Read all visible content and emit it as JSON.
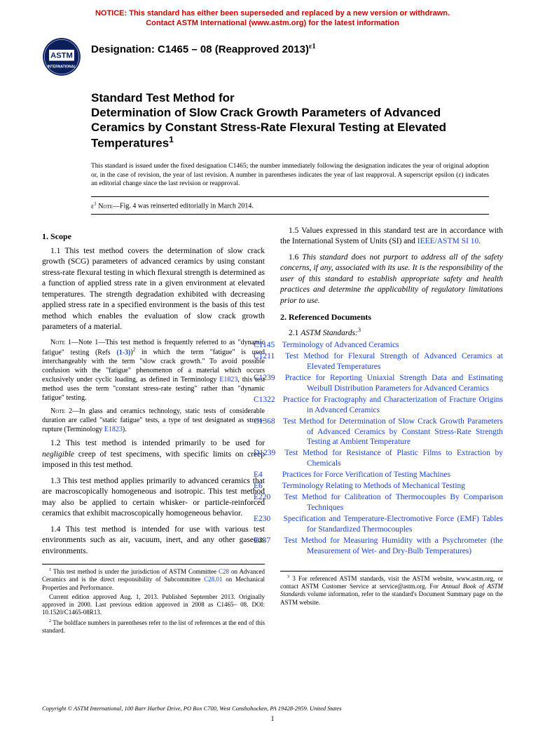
{
  "notice": {
    "line1": "NOTICE: This standard has either been superseded and replaced by a new version or withdrawn.",
    "line2": "Contact ASTM International (www.astm.org) for the latest information"
  },
  "designation": {
    "label": "Designation: C1465 – 08 (Reapproved 2013)",
    "eps": "ε1"
  },
  "title": {
    "line1": "Standard Test Method for",
    "line2": "Determination of Slow Crack Growth Parameters of Advanced Ceramics by Constant Stress-Rate Flexural Testing at Elevated Temperatures",
    "sup": "1"
  },
  "issuance": "This standard is issued under the fixed designation C1465; the number immediately following the designation indicates the year of original adoption or, in the case of revision, the year of last revision. A number in parentheses indicates the year of last reapproval. A superscript epsilon (ε) indicates an editorial change since the last revision or reapproval.",
  "eps_note": {
    "prefix": "ε1 NOTE—",
    "text": "Fig. 4 was reinserted editorially in March 2014."
  },
  "scope": {
    "head": "1. Scope",
    "p11": "1.1 This test method covers the determination of slow crack growth (SCG) parameters of advanced ceramics by using constant stress-rate flexural testing in which flexural strength is determined as a function of applied stress rate in a given environment at elevated temperatures. The strength degradation exhibited with decreasing applied stress rate in a specified environment is the basis of this test method which enables the evaluation of slow crack growth parameters of a material.",
    "note1_a": "Note 1—This test method is frequently referred to as \"dynamic fatigue\" testing (Refs ",
    "note1_refs": "(1-3)",
    "note1_b": ")2 in which the term \"fatigue\" is used interchangeably with the term \"slow crack growth.\" To avoid possible confusion with the \"fatigue\" phenomenon of a material which occurs exclusively under cyclic loading, as defined in Terminology ",
    "note1_e1823": "E1823",
    "note1_c": ", this test method uses the term \"constant stress-rate testing\" rather than \"dynamic fatigue\" testing.",
    "note2_a": "Note 2—In glass and ceramics technology, static tests of considerable duration are called \"static fatigue\" tests, a type of test designated as stress-rupture (Terminology ",
    "note2_e1823": "E1823",
    "note2_b": ").",
    "p12_a": "1.2 This test method is intended primarily to be used for ",
    "p12_neg": "negligible",
    "p12_b": " creep of test specimens, with specific limits on creep imposed in this test method.",
    "p13": "1.3 This test method applies primarily to advanced ceramics that are macroscopically homogeneous and isotropic. This test method may also be applied to certain whisker- or particle-reinforced ceramics that exhibit macroscopically homogeneous behavior.",
    "p14": "1.4 This test method is intended for use with various test environments such as air, vacuum, inert, and any other gaseous environments.",
    "p15_a": "1.5 Values expressed in this standard test are in accordance with the International System of Units (SI) and ",
    "p15_link": "IEEE/ASTM SI 10",
    "p15_b": ".",
    "p16": "1.6 This standard does not purport to address all of the safety concerns, if any, associated with its use. It is the responsibility of the user of this standard to establish appropriate safety and health practices and determine the applicability of regulatory limitations prior to use."
  },
  "refs": {
    "head": "2. Referenced Documents",
    "sub_a": "2.1 ",
    "sub_b": "ASTM Standards:",
    "sub_sup": "3",
    "items": [
      {
        "code": "C1145",
        "title": "Terminology of Advanced Ceramics"
      },
      {
        "code": "C1211",
        "title": "Test Method for Flexural Strength of Advanced Ceramics at Elevated Temperatures"
      },
      {
        "code": "C1239",
        "title": "Practice for Reporting Uniaxial Strength Data and Estimating Weibull Distribution Parameters for Advanced Ceramics"
      },
      {
        "code": "C1322",
        "title": "Practice for Fractography and Characterization of Fracture Origins in Advanced Ceramics"
      },
      {
        "code": "C1368",
        "title": "Test Method for Determination of Slow Crack Growth Parameters of Advanced Ceramics by Constant Stress-Rate Strength Testing at Ambient Temperature"
      },
      {
        "code": "D1239",
        "title": "Test Method for Resistance of Plastic Films to Extraction by Chemicals"
      },
      {
        "code": "E4",
        "title": "Practices for Force Verification of Testing Machines"
      },
      {
        "code": "E6",
        "title": "Terminology Relating to Methods of Mechanical Testing"
      },
      {
        "code": "E220",
        "title": "Test Method for Calibration of Thermocouples By Comparison Techniques"
      },
      {
        "code": "E230",
        "title": "Specification and Temperature-Electromotive Force (EMF) Tables for Standardized Thermocouples"
      },
      {
        "code": "E337",
        "title": "Test Method for Measuring Humidity with a Psychrometer (the Measurement of Wet- and Dry-Bulb Temperatures)"
      }
    ]
  },
  "footnotes_left": {
    "fn1_a": "1 This test method is under the jurisdiction of ASTM Committee ",
    "fn1_c28": "C28",
    "fn1_b": " on Advanced Ceramics and is the direct responsibility of Subcommittee ",
    "fn1_c2801": "C28.01",
    "fn1_c": " on Mechanical Properties and Performance.",
    "fn1_d": "Current edition approved Aug. 1, 2013. Published September 2013. Originally approved in 2000. Last previous edition approved in 2008 as C1465– 08. DOI: 10.1520/C1465-08R13.",
    "fn2": "2 The boldface numbers in parentheses refer to the list of references at the end of this standard."
  },
  "footnotes_right": {
    "fn3_a": "3 For referenced ASTM standards, visit the ASTM website, www.astm.org, or contact ASTM Customer Service at service@astm.org. For ",
    "fn3_i": "Annual Book of ASTM Standards",
    "fn3_b": " volume information, refer to the standard's Document Summary page on the ASTM website."
  },
  "copyright": "Copyright © ASTM International, 100 Barr Harbor Drive, PO Box C700, West Conshohocken, PA 19428-2959. United States",
  "page": "1"
}
